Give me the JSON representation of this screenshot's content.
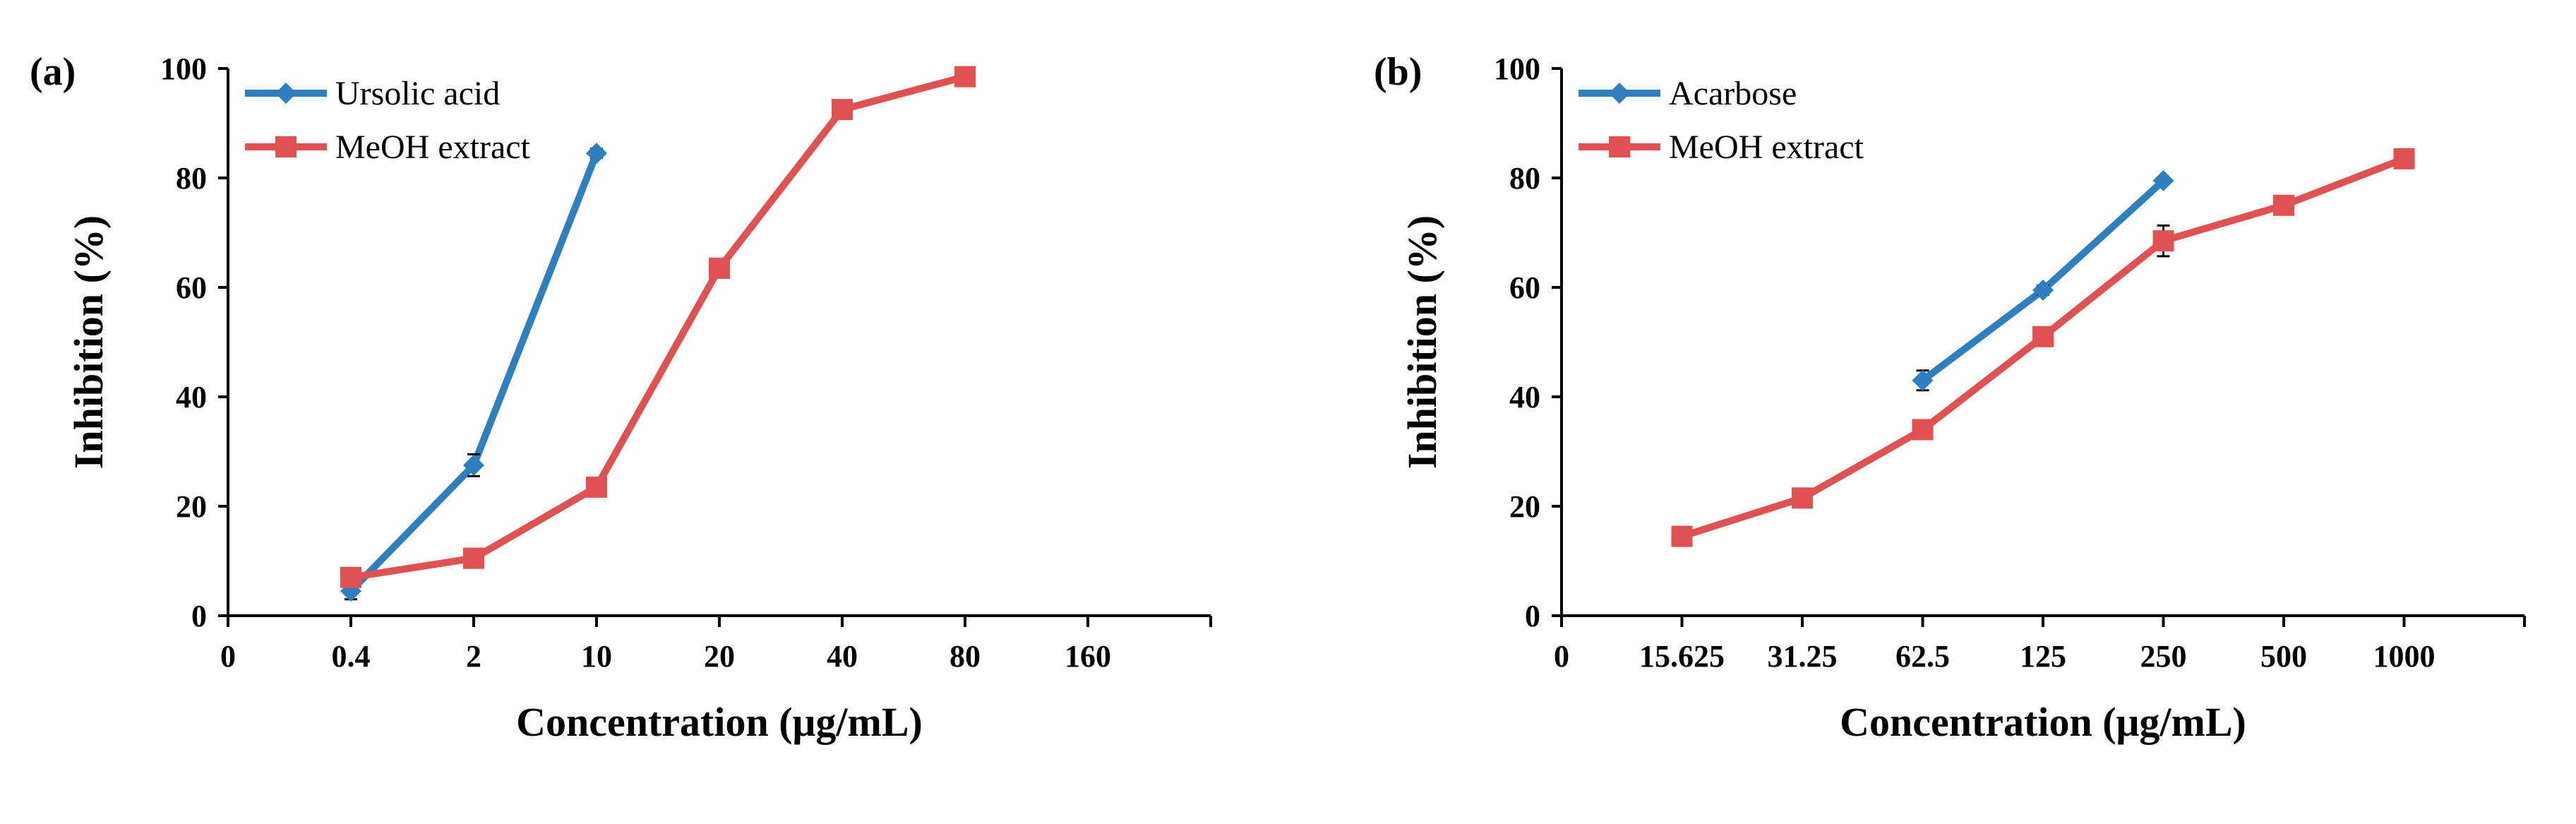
{
  "chart_data": [
    {
      "panel_label": "(a)",
      "type": "line",
      "xlabel": "Concentration (μg/mL)",
      "ylabel": "Inhibition (%)",
      "categories": [
        "0",
        "0.4",
        "2",
        "10",
        "20",
        "40",
        "80",
        "160"
      ],
      "ylim": [
        0,
        100
      ],
      "yticks": [
        "0",
        "20",
        "40",
        "60",
        "80",
        "100"
      ],
      "grid": false,
      "legend_position": "top-left",
      "series": [
        {
          "name": "Ursolic acid",
          "color": "#2e7fbf",
          "marker": "diamond",
          "x": [
            "0.4",
            "2",
            "10"
          ],
          "values": [
            4.5,
            27.5,
            84.5
          ],
          "errors": [
            1.5,
            2.0,
            0.8
          ]
        },
        {
          "name": "MeOH extract",
          "color": "#e05252",
          "marker": "square",
          "x": [
            "0.4",
            "2",
            "10",
            "20",
            "40",
            "80"
          ],
          "values": [
            7,
            10.5,
            23.5,
            63.5,
            92.5,
            98.5
          ],
          "errors": [
            0.8,
            1.5,
            0.8,
            0.8,
            1.5,
            0.5
          ]
        }
      ]
    },
    {
      "panel_label": "(b)",
      "type": "line",
      "xlabel": "Concentration (μg/mL)",
      "ylabel": "Inhibition (%)",
      "categories": [
        "0",
        "15.625",
        "31.25",
        "62.5",
        "125",
        "250",
        "500",
        "1000"
      ],
      "ylim": [
        0,
        100
      ],
      "yticks": [
        "0",
        "20",
        "40",
        "60",
        "80",
        "100"
      ],
      "grid": false,
      "legend_position": "top-left",
      "series": [
        {
          "name": "Acarbose",
          "color": "#2e7fbf",
          "marker": "diamond",
          "x": [
            "62.5",
            "125",
            "250"
          ],
          "values": [
            43,
            59.5,
            79.5
          ],
          "errors": [
            1.8,
            0.8,
            0.5
          ]
        },
        {
          "name": "MeOH extract",
          "color": "#e05252",
          "marker": "square",
          "x": [
            "15.625",
            "31.25",
            "62.5",
            "125",
            "250",
            "500",
            "1000"
          ],
          "values": [
            14.5,
            21.5,
            34,
            51,
            68.5,
            75,
            83.5
          ],
          "errors": [
            0.5,
            0.5,
            0.5,
            0.8,
            2.8,
            1.5,
            0.5
          ]
        }
      ]
    }
  ]
}
